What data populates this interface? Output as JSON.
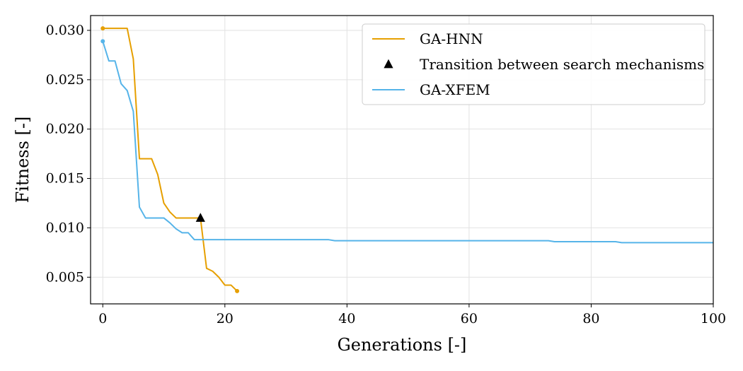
{
  "chart_data": {
    "type": "line",
    "xlabel": "Generations [-]",
    "ylabel": "Fitness [-]",
    "xlim": [
      -2,
      100
    ],
    "ylim": [
      0.0023,
      0.0315
    ],
    "x_ticks": [
      0,
      20,
      40,
      60,
      80,
      100
    ],
    "y_ticks": [
      0.005,
      0.01,
      0.015,
      0.02,
      0.025,
      0.03
    ],
    "x_tick_labels": [
      "0",
      "20",
      "40",
      "60",
      "80",
      "100"
    ],
    "y_tick_labels": [
      "0.005",
      "0.010",
      "0.015",
      "0.020",
      "0.025",
      "0.030"
    ],
    "grid": true,
    "legend_position": "top-right",
    "series": [
      {
        "name": "GA-HNN",
        "color": "#E69F00",
        "x": [
          0,
          1,
          2,
          3,
          4,
          5,
          6,
          7,
          8,
          9,
          10,
          11,
          12,
          13,
          14,
          15,
          16,
          17,
          18,
          19,
          20,
          21,
          22
        ],
        "y": [
          0.0302,
          0.0302,
          0.0302,
          0.0302,
          0.0302,
          0.0271,
          0.017,
          0.017,
          0.017,
          0.0154,
          0.0125,
          0.0116,
          0.011,
          0.011,
          0.011,
          0.011,
          0.011,
          0.0059,
          0.0056,
          0.005,
          0.0042,
          0.0042,
          0.0036
        ]
      },
      {
        "name": "GA-XFEM",
        "color": "#56B4E9",
        "x": [
          0,
          1,
          2,
          3,
          4,
          5,
          6,
          7,
          8,
          9,
          10,
          11,
          12,
          13,
          14,
          15,
          16,
          37,
          38,
          73,
          74,
          84,
          85,
          100
        ],
        "y": [
          0.0289,
          0.0269,
          0.0269,
          0.0246,
          0.0239,
          0.0218,
          0.0121,
          0.011,
          0.011,
          0.011,
          0.011,
          0.0105,
          0.0099,
          0.0095,
          0.0095,
          0.0088,
          0.0088,
          0.0088,
          0.0087,
          0.0087,
          0.0086,
          0.0086,
          0.0085,
          0.0085
        ]
      }
    ],
    "markers": [
      {
        "name": "Transition between search mechanisms",
        "shape": "triangle",
        "color": "#000000",
        "x": 16,
        "y": 0.011
      }
    ],
    "legend_order": [
      "GA-HNN",
      "Transition between search mechanisms",
      "GA-XFEM"
    ]
  }
}
